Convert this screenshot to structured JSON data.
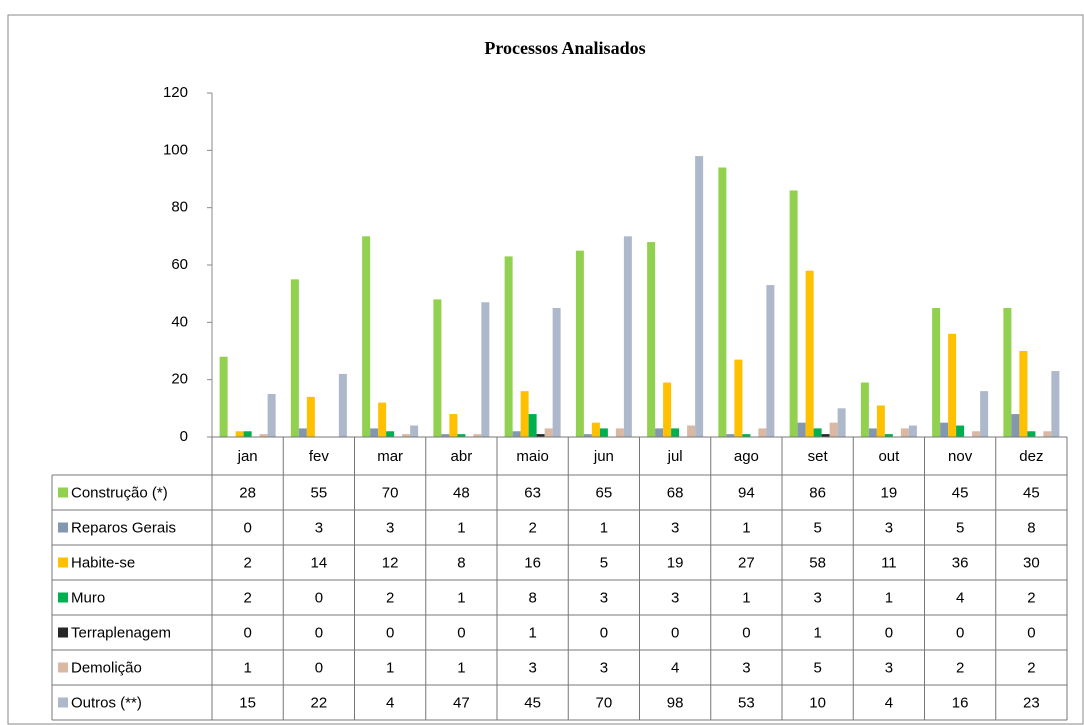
{
  "chart_data": {
    "type": "bar",
    "title": "Processos Analisados",
    "categories": [
      "jan",
      "fev",
      "mar",
      "abr",
      "maio",
      "jun",
      "jul",
      "ago",
      "set",
      "out",
      "nov",
      "dez"
    ],
    "series": [
      {
        "name": "Construção (*)",
        "color": "#92d050",
        "values": [
          28,
          55,
          70,
          48,
          63,
          65,
          68,
          94,
          86,
          19,
          45,
          45
        ]
      },
      {
        "name": "Reparos Gerais",
        "color": "#8497b0",
        "values": [
          0,
          3,
          3,
          1,
          2,
          1,
          3,
          1,
          5,
          3,
          5,
          8
        ]
      },
      {
        "name": "Habite-se",
        "color": "#ffc000",
        "values": [
          2,
          14,
          12,
          8,
          16,
          5,
          19,
          27,
          58,
          11,
          36,
          30
        ]
      },
      {
        "name": "Muro",
        "color": "#00b050",
        "values": [
          2,
          0,
          2,
          1,
          8,
          3,
          3,
          1,
          3,
          1,
          4,
          2
        ]
      },
      {
        "name": "Terraplenagem",
        "color": "#262626",
        "values": [
          0,
          0,
          0,
          0,
          1,
          0,
          0,
          0,
          1,
          0,
          0,
          0
        ]
      },
      {
        "name": "Demolição",
        "color": "#d9b8a4",
        "values": [
          1,
          0,
          1,
          1,
          3,
          3,
          4,
          3,
          5,
          3,
          2,
          2
        ]
      },
      {
        "name": "Outros (**)",
        "color": "#adb9ca",
        "values": [
          15,
          22,
          4,
          47,
          45,
          70,
          98,
          53,
          10,
          4,
          16,
          23
        ]
      }
    ],
    "ylim": [
      0,
      120
    ],
    "yticks": [
      0,
      20,
      40,
      60,
      80,
      100,
      120
    ]
  }
}
